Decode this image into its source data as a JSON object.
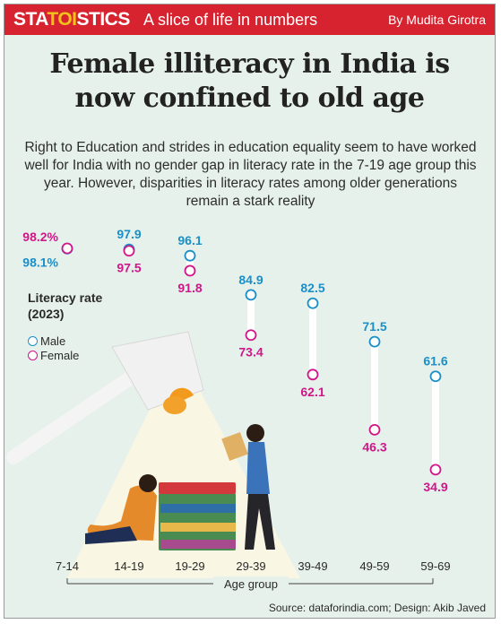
{
  "header": {
    "brand_pre": "STA",
    "brand_mid": "TOI",
    "brand_post": "STICS",
    "tagline": "A slice of life in numbers",
    "byline": "By Mudita Girotra"
  },
  "title_line1": "Female illiteracy in India is",
  "title_line2": "now confined to old age",
  "subtitle": "Right to Education and strides in education equality seem to have worked well for India with no gender gap in literacy rate in the 7-19 age group this year. However, disparities in literacy rates among older generations remain a stark reality",
  "legend": {
    "title_line1": "Literacy rate",
    "title_line2": "(2023)",
    "male": "Male",
    "female": "Female"
  },
  "source": "Source: dataforindia.com; Design: Akib Javed",
  "colors": {
    "male": "#1a8fc8",
    "female": "#d1168a",
    "banner": "#d7232f",
    "background": "#e7f1eb"
  },
  "chart_data": {
    "type": "dumbbell",
    "categories": [
      "7-14",
      "14-19",
      "19-29",
      "29-39",
      "39-49",
      "49-59",
      "59-69"
    ],
    "xlabel": "Age group",
    "series": [
      {
        "name": "Male",
        "values": [
          98.1,
          97.9,
          96.1,
          84.9,
          82.5,
          71.5,
          61.6
        ],
        "labels": [
          "98.1%",
          "97.9",
          "96.1",
          "84.9",
          "82.5",
          "71.5",
          "61.6"
        ]
      },
      {
        "name": "Female",
        "values": [
          98.2,
          97.5,
          91.8,
          73.4,
          62.1,
          46.3,
          34.9
        ],
        "labels": [
          "98.2%",
          "97.5",
          "91.8",
          "73.4",
          "62.1",
          "46.3",
          "34.9"
        ]
      }
    ]
  }
}
